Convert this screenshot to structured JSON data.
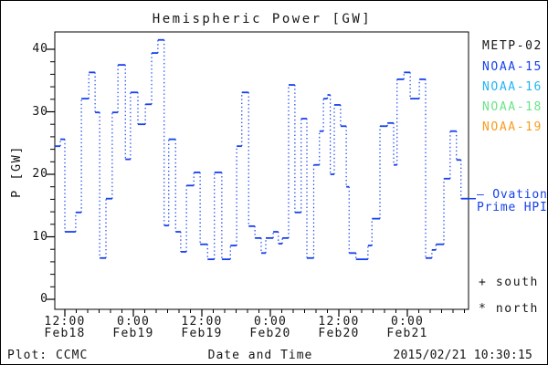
{
  "window": {
    "background": "#ffffff",
    "border_color": "#000000"
  },
  "chart_data": {
    "type": "line",
    "subtype": "step-with-dotted-connectors",
    "title": "Hemispheric Power [GW]",
    "xlabel": "Date and Time",
    "ylabel": "P [GW]",
    "ylim": [
      0,
      42
    ],
    "y_ticks": [
      0,
      10,
      20,
      30,
      40
    ],
    "y_minor_interval_gw": 2,
    "x_minor_interval_hours": 2,
    "x_major_interval_hours": 12,
    "x_ticks": [
      {
        "time": "12:00",
        "date": "Feb18"
      },
      {
        "time": "0:00",
        "date": "Feb19"
      },
      {
        "time": "12:00",
        "date": "Feb19"
      },
      {
        "time": "0:00",
        "date": "Feb20"
      },
      {
        "time": "12:00",
        "date": "Feb20"
      },
      {
        "time": "0:00",
        "date": "Feb21"
      }
    ],
    "x_range_hours_from_feb18_0000": [
      10.2,
      82.7
    ],
    "grid": false,
    "series": [
      {
        "name": "Ovation Prime HPI",
        "color": "#1740ef",
        "t_end_hours": 82.7,
        "steps_t_hours_p_gw": [
          [
            10.2,
            24.5
          ],
          [
            11.2,
            25.6
          ],
          [
            12.0,
            10.8
          ],
          [
            13.9,
            13.9
          ],
          [
            14.9,
            32.1
          ],
          [
            16.2,
            36.3
          ],
          [
            17.3,
            29.9
          ],
          [
            18.1,
            6.6
          ],
          [
            19.2,
            16.1
          ],
          [
            20.3,
            29.9
          ],
          [
            21.3,
            37.5
          ],
          [
            22.6,
            22.4
          ],
          [
            23.5,
            33.1
          ],
          [
            24.8,
            28.0
          ],
          [
            26.1,
            31.2
          ],
          [
            27.2,
            39.4
          ],
          [
            28.3,
            41.5
          ],
          [
            29.4,
            11.8
          ],
          [
            30.2,
            25.6
          ],
          [
            31.4,
            10.8
          ],
          [
            32.3,
            7.6
          ],
          [
            33.3,
            18.2
          ],
          [
            34.6,
            20.3
          ],
          [
            35.7,
            8.8
          ],
          [
            37.0,
            6.4
          ],
          [
            38.2,
            20.3
          ],
          [
            39.5,
            6.4
          ],
          [
            41.0,
            8.6
          ],
          [
            42.1,
            24.5
          ],
          [
            43.0,
            33.1
          ],
          [
            44.2,
            11.7
          ],
          [
            45.3,
            9.8
          ],
          [
            46.4,
            7.4
          ],
          [
            47.2,
            9.8
          ],
          [
            48.5,
            10.8
          ],
          [
            49.4,
            8.9
          ],
          [
            50.1,
            9.8
          ],
          [
            51.2,
            34.3
          ],
          [
            52.3,
            13.9
          ],
          [
            53.4,
            28.9
          ],
          [
            54.4,
            6.6
          ],
          [
            55.6,
            21.5
          ],
          [
            56.6,
            26.9
          ],
          [
            57.3,
            32.1
          ],
          [
            58.0,
            32.7
          ],
          [
            58.5,
            20.0
          ],
          [
            59.2,
            31.1
          ],
          [
            60.3,
            27.7
          ],
          [
            61.3,
            18.0
          ],
          [
            61.8,
            7.4
          ],
          [
            63.0,
            6.4
          ],
          [
            65.1,
            8.6
          ],
          [
            65.8,
            12.9
          ],
          [
            67.2,
            27.7
          ],
          [
            68.5,
            28.2
          ],
          [
            69.6,
            21.5
          ],
          [
            70.2,
            35.2
          ],
          [
            71.4,
            36.3
          ],
          [
            72.5,
            32.1
          ],
          [
            74.1,
            35.2
          ],
          [
            75.2,
            6.6
          ],
          [
            76.3,
            7.9
          ],
          [
            77.0,
            8.8
          ],
          [
            78.4,
            19.3
          ],
          [
            79.5,
            26.9
          ],
          [
            80.6,
            22.3
          ],
          [
            81.4,
            16.1
          ]
        ]
      }
    ]
  },
  "legend": {
    "items": [
      {
        "label": "METP-02",
        "color": "#141414"
      },
      {
        "label": "NOAA-15",
        "color": "#1740ef"
      },
      {
        "label": "NOAA-16",
        "color": "#21b4f5"
      },
      {
        "label": "NOAA-18",
        "color": "#68e487"
      },
      {
        "label": "NOAA-19",
        "color": "#f79c1e"
      }
    ],
    "ovation": {
      "dash": "—",
      "line1": "Ovation",
      "line2": "Prime HPI",
      "color": "#1740ef"
    },
    "south_label": "+ south",
    "north_label": "* north"
  },
  "footer": {
    "credit": "Plot: CCMC",
    "timestamp": "2015/02/21 10:30:15"
  }
}
